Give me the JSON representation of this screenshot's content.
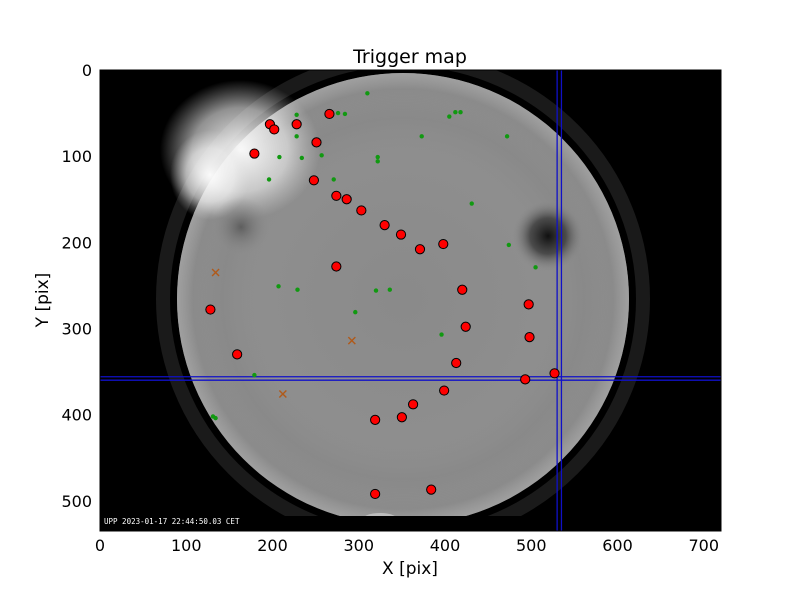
{
  "chart_data": {
    "type": "scatter",
    "title": "Trigger map",
    "xlabel": "X [pix]",
    "ylabel": "Y [pix]",
    "xlim": [
      0,
      720
    ],
    "ylim": [
      535,
      0
    ],
    "xticks": [
      0,
      100,
      200,
      300,
      400,
      500,
      600,
      700
    ],
    "yticks": [
      0,
      100,
      200,
      300,
      400,
      500
    ],
    "grid": false,
    "background_image": "all-sky fisheye camera frame (grayscale)",
    "timestamp": "UPP 2023-01-17 22:44:50.03 CET",
    "crosshair": {
      "color": "#1010c8",
      "x": [
        530,
        535
      ],
      "y": [
        356,
        360
      ]
    },
    "series": [
      {
        "marker": "circle-large",
        "color": "#ff0000",
        "edge": "#000000",
        "points": [
          [
            197,
            63
          ],
          [
            202,
            69
          ],
          [
            228,
            63
          ],
          [
            266,
            51
          ],
          [
            251,
            84
          ],
          [
            179,
            97
          ],
          [
            248,
            128
          ],
          [
            274,
            146
          ],
          [
            286,
            150
          ],
          [
            303,
            163
          ],
          [
            330,
            180
          ],
          [
            349,
            191
          ],
          [
            371,
            208
          ],
          [
            398,
            202
          ],
          [
            274,
            228
          ],
          [
            420,
            255
          ],
          [
            497,
            272
          ],
          [
            128,
            278
          ],
          [
            424,
            298
          ],
          [
            498,
            310
          ],
          [
            159,
            330
          ],
          [
            413,
            340
          ],
          [
            527,
            352
          ],
          [
            493,
            359
          ],
          [
            399,
            372
          ],
          [
            363,
            388
          ],
          [
            350,
            403
          ],
          [
            319,
            406
          ],
          [
            319,
            492
          ],
          [
            384,
            487
          ]
        ]
      },
      {
        "marker": "dot",
        "color": "#119911",
        "points": [
          [
            310,
            27
          ],
          [
            228,
            52
          ],
          [
            276,
            50
          ],
          [
            284,
            51
          ],
          [
            418,
            49
          ],
          [
            412,
            49
          ],
          [
            405,
            54
          ],
          [
            228,
            77
          ],
          [
            373,
            77
          ],
          [
            472,
            77
          ],
          [
            208,
            101
          ],
          [
            234,
            102
          ],
          [
            257,
            99
          ],
          [
            322,
            101
          ],
          [
            322,
            106
          ],
          [
            196,
            127
          ],
          [
            271,
            127
          ],
          [
            431,
            155
          ],
          [
            474,
            203
          ],
          [
            505,
            229
          ],
          [
            207,
            251
          ],
          [
            229,
            255
          ],
          [
            320,
            256
          ],
          [
            336,
            255
          ],
          [
            296,
            281
          ],
          [
            396,
            307
          ],
          [
            179,
            354
          ],
          [
            131,
            402
          ],
          [
            134,
            404
          ]
        ]
      },
      {
        "marker": "x",
        "color": "#b05a1a",
        "points": [
          [
            134,
            235
          ],
          [
            292,
            314
          ],
          [
            212,
            376
          ]
        ]
      }
    ]
  }
}
